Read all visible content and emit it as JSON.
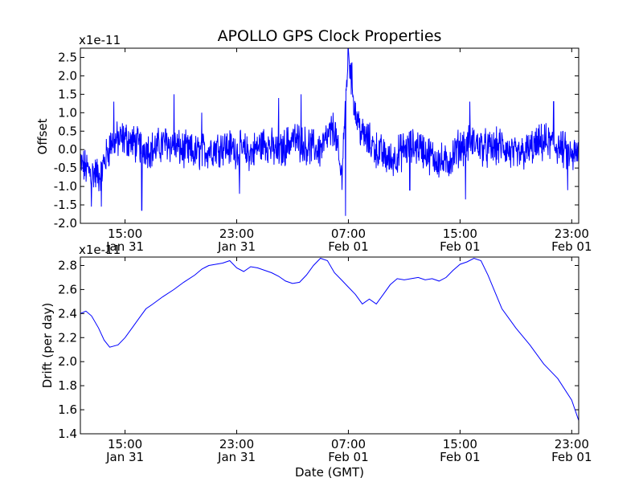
{
  "title": "APOLLO GPS Clock Properties",
  "accent": "#0000ff",
  "chart_data": [
    {
      "type": "line",
      "name": "offset",
      "ylabel": "Offset",
      "xlabel": "",
      "scale_label": "x1e-11",
      "ylim": [
        -2.0,
        2.75
      ],
      "yticks": [
        -2.0,
        -1.5,
        -1.0,
        -0.5,
        0.0,
        0.5,
        1.0,
        1.5,
        2.0,
        2.5
      ],
      "ytick_labels": [
        "-2.0",
        "-1.5",
        "-1.0",
        "-0.5",
        "0.0",
        "0.5",
        "1.0",
        "1.5",
        "2.0",
        "2.5"
      ],
      "xlim_hours": [
        11.8,
        47.5
      ],
      "xticks_hours": [
        15,
        23,
        31,
        39,
        47
      ],
      "xtick_labels": [
        [
          "15:00",
          "Jan 31"
        ],
        [
          "23:00",
          "Jan 31"
        ],
        [
          "07:00",
          "Feb 01"
        ],
        [
          "15:00",
          "Feb 01"
        ],
        [
          "23:00",
          "Feb 01"
        ]
      ],
      "series": [
        {
          "name": "offset",
          "color": "#0000ff",
          "x_hours": [
            11.8,
            12.5,
            13.2,
            14.0,
            15.0,
            16.0,
            17.0,
            18.0,
            19.0,
            20.0,
            21.0,
            22.0,
            23.0,
            24.0,
            25.0,
            26.0,
            27.0,
            28.0,
            29.0,
            30.0,
            30.5,
            31.0,
            31.5,
            32.0,
            33.0,
            34.0,
            35.0,
            36.0,
            37.0,
            38.0,
            39.0,
            40.0,
            41.0,
            42.0,
            43.0,
            44.0,
            45.0,
            46.0,
            47.0,
            47.5
          ],
          "values": [
            -0.4,
            -0.6,
            -0.7,
            0.2,
            0.3,
            0.1,
            0.0,
            0.2,
            0.0,
            -0.1,
            0.0,
            0.1,
            0.0,
            -0.1,
            0.2,
            -0.1,
            0.3,
            0.1,
            0.0,
            0.6,
            -0.8,
            2.7,
            1.0,
            0.4,
            0.0,
            -0.3,
            0.0,
            0.1,
            -0.2,
            -0.4,
            0.1,
            0.2,
            0.0,
            0.1,
            -0.2,
            0.0,
            0.2,
            0.1,
            -0.2,
            -0.1
          ],
          "spikes": [
            {
              "x_hours": 12.6,
              "value": -1.55
            },
            {
              "x_hours": 13.3,
              "value": -1.55
            },
            {
              "x_hours": 14.2,
              "value": 1.3
            },
            {
              "x_hours": 16.2,
              "value": -1.65
            },
            {
              "x_hours": 18.5,
              "value": 1.5
            },
            {
              "x_hours": 20.5,
              "value": 1.0
            },
            {
              "x_hours": 23.2,
              "value": -1.2
            },
            {
              "x_hours": 26.0,
              "value": 1.4
            },
            {
              "x_hours": 27.6,
              "value": 1.5
            },
            {
              "x_hours": 30.8,
              "value": -1.8
            },
            {
              "x_hours": 31.0,
              "value": 2.7
            },
            {
              "x_hours": 35.4,
              "value": -1.1
            },
            {
              "x_hours": 39.4,
              "value": -1.35
            },
            {
              "x_hours": 39.7,
              "value": 1.3
            },
            {
              "x_hours": 45.7,
              "value": 1.3
            },
            {
              "x_hours": 46.7,
              "value": -1.1
            }
          ]
        }
      ]
    },
    {
      "type": "line",
      "name": "drift",
      "ylabel": "Drift (per day)",
      "xlabel": "Date (GMT)",
      "scale_label": "x1e-11",
      "ylim": [
        1.4,
        2.87
      ],
      "yticks": [
        1.4,
        1.6,
        1.8,
        2.0,
        2.2,
        2.4,
        2.6,
        2.8
      ],
      "ytick_labels": [
        "1.4",
        "1.6",
        "1.8",
        "2.0",
        "2.2",
        "2.4",
        "2.6",
        "2.8"
      ],
      "xlim_hours": [
        11.8,
        47.5
      ],
      "xticks_hours": [
        15,
        23,
        31,
        39,
        47
      ],
      "xtick_labels": [
        [
          "15:00",
          "Jan 31"
        ],
        [
          "23:00",
          "Jan 31"
        ],
        [
          "07:00",
          "Feb 01"
        ],
        [
          "15:00",
          "Feb 01"
        ],
        [
          "23:00",
          "Feb 01"
        ]
      ],
      "series": [
        {
          "name": "drift",
          "color": "#0000ff",
          "x_hours": [
            11.8,
            12.2,
            12.6,
            13.1,
            13.5,
            13.9,
            14.5,
            15.0,
            15.5,
            16.0,
            16.5,
            17.0,
            17.7,
            18.5,
            19.2,
            20.0,
            20.5,
            21.0,
            21.5,
            22.0,
            22.5,
            23.0,
            23.5,
            24.0,
            24.5,
            25.0,
            25.5,
            26.0,
            26.5,
            27.0,
            27.5,
            28.0,
            28.5,
            29.0,
            29.5,
            30.0,
            30.5,
            31.0,
            31.5,
            32.0,
            32.5,
            33.0,
            33.5,
            34.0,
            34.5,
            35.0,
            35.5,
            36.0,
            36.5,
            37.0,
            37.5,
            38.0,
            38.5,
            39.0,
            39.5,
            40.0,
            40.5,
            41.0,
            41.5,
            42.0,
            43.0,
            44.0,
            45.0,
            46.0,
            47.0,
            47.5
          ],
          "values": [
            2.4,
            2.42,
            2.38,
            2.28,
            2.18,
            2.12,
            2.14,
            2.2,
            2.28,
            2.36,
            2.44,
            2.48,
            2.54,
            2.6,
            2.66,
            2.72,
            2.77,
            2.8,
            2.81,
            2.82,
            2.84,
            2.78,
            2.75,
            2.79,
            2.78,
            2.76,
            2.74,
            2.71,
            2.67,
            2.65,
            2.66,
            2.72,
            2.8,
            2.86,
            2.84,
            2.74,
            2.68,
            2.62,
            2.56,
            2.48,
            2.52,
            2.48,
            2.56,
            2.64,
            2.69,
            2.68,
            2.69,
            2.7,
            2.68,
            2.69,
            2.67,
            2.7,
            2.76,
            2.81,
            2.83,
            2.86,
            2.84,
            2.72,
            2.58,
            2.44,
            2.28,
            2.14,
            1.98,
            1.86,
            1.68,
            1.51
          ]
        }
      ]
    }
  ]
}
